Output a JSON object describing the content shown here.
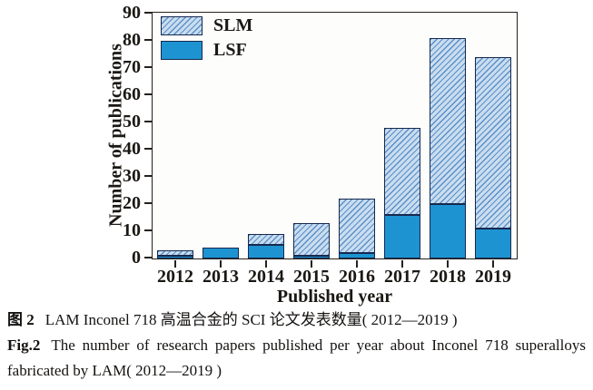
{
  "chart_data": {
    "type": "bar",
    "stacked": true,
    "categories": [
      "2012",
      "2013",
      "2014",
      "2015",
      "2016",
      "2017",
      "2018",
      "2019"
    ],
    "series": [
      {
        "name": "LSF",
        "values": [
          1,
          4,
          5,
          1,
          2,
          16,
          20,
          11
        ],
        "pattern": "solid"
      },
      {
        "name": "SLM",
        "values": [
          2,
          0,
          4,
          12,
          20,
          32,
          61,
          63
        ],
        "pattern": "hatch"
      }
    ],
    "totals": [
      3,
      4,
      9,
      13,
      22,
      48,
      81,
      74
    ],
    "title": "",
    "xlabel": "Published year",
    "ylabel": "Number of publications",
    "ylim": [
      0,
      90
    ],
    "ytick_step": 10,
    "yticks": [
      0,
      10,
      20,
      30,
      40,
      50,
      60,
      70,
      80,
      90
    ],
    "legend_entries": [
      "SLM",
      "LSF"
    ],
    "legend_position": "top-left-inside",
    "grid": false,
    "colors": {
      "lsf_solid": "#1e93d2",
      "slm_hatch_bg": "#c9ddf0",
      "slm_hatch_line": "#5b8fc6",
      "bar_border": "#16294f",
      "axis": "#26211c"
    }
  },
  "caption": {
    "zh_label": "图 2",
    "zh_text": "LAM Inconel 718 高温合金的 SCI 论文发表数量( 2012—2019 )",
    "en_label": "Fig.2",
    "en_text": "The number of research papers published per year about Inconel 718 superalloys fabricated by LAM( 2012—2019 )"
  }
}
